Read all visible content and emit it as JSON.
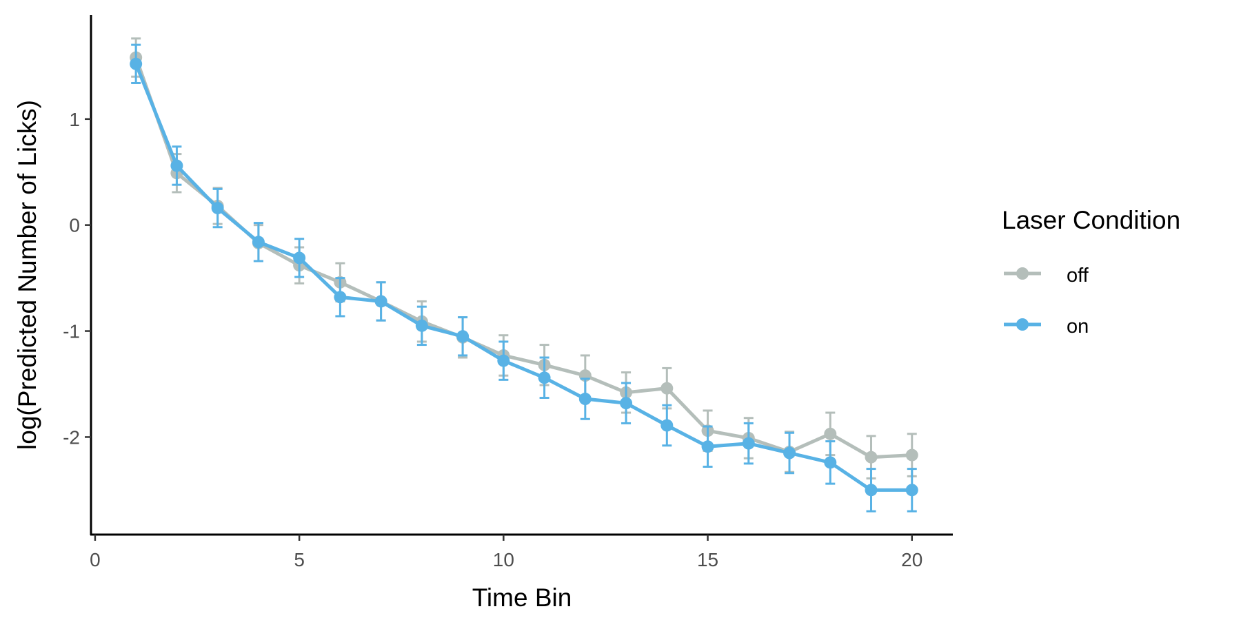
{
  "chart_data": {
    "type": "line",
    "title": "",
    "xlabel": "Time Bin",
    "ylabel": "log(Predicted Number of Licks)",
    "xlim": [
      -0.1,
      21
    ],
    "ylim": [
      -2.92,
      1.98
    ],
    "xticks": [
      0,
      5,
      10,
      15,
      20
    ],
    "xtick_labels": [
      "0",
      "5",
      "10",
      "15",
      "20"
    ],
    "yticks": [
      -2,
      -1,
      0,
      1
    ],
    "ytick_labels": [
      "-2",
      "-1",
      "0",
      "1"
    ],
    "grid": false,
    "legend": {
      "title": "Laser Condition",
      "position": "right"
    },
    "x": [
      1,
      2,
      3,
      4,
      5,
      6,
      7,
      8,
      9,
      10,
      11,
      12,
      13,
      14,
      15,
      16,
      17,
      18,
      19,
      20
    ],
    "series": [
      {
        "name": "off",
        "color": "#b4beba",
        "values": [
          1.58,
          0.49,
          0.18,
          -0.17,
          -0.38,
          -0.54,
          -0.72,
          -0.91,
          -1.06,
          -1.23,
          -1.32,
          -1.42,
          -1.58,
          -1.54,
          -1.94,
          -2.01,
          -2.14,
          -1.97,
          -2.19,
          -2.17
        ],
        "error": [
          0.18,
          0.18,
          0.17,
          0.17,
          0.17,
          0.18,
          0.18,
          0.19,
          0.19,
          0.19,
          0.19,
          0.19,
          0.19,
          0.19,
          0.19,
          0.19,
          0.19,
          0.2,
          0.2,
          0.2
        ]
      },
      {
        "name": "on",
        "color": "#58b2e5",
        "values": [
          1.52,
          0.56,
          0.16,
          -0.16,
          -0.31,
          -0.68,
          -0.72,
          -0.95,
          -1.05,
          -1.28,
          -1.44,
          -1.64,
          -1.68,
          -1.89,
          -2.09,
          -2.06,
          -2.15,
          -2.24,
          -2.5,
          -2.5
        ],
        "error": [
          0.18,
          0.18,
          0.18,
          0.18,
          0.18,
          0.18,
          0.18,
          0.18,
          0.18,
          0.18,
          0.19,
          0.19,
          0.19,
          0.19,
          0.19,
          0.19,
          0.19,
          0.2,
          0.2,
          0.2
        ]
      }
    ]
  }
}
